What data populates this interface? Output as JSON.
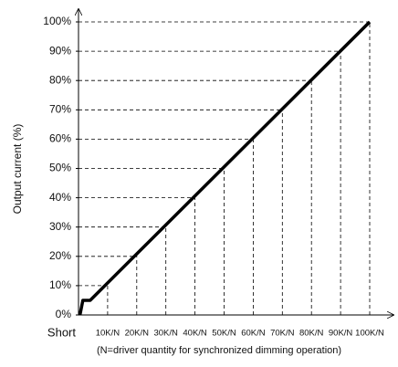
{
  "chart_data": {
    "type": "line",
    "ylabel": "Output current (%)",
    "xlabel": "(N=driver quantity for synchronized dimming operation)",
    "x": [
      0.5,
      1.5,
      4,
      100
    ],
    "series": [
      {
        "color": "#000000",
        "values": [
          0,
          5,
          5,
          100
        ]
      }
    ],
    "xlim": [
      0,
      100
    ],
    "xticks": [
      {
        "value": 0,
        "label": "Short"
      },
      {
        "value": 10,
        "label": "10K/N"
      },
      {
        "value": 20,
        "label": "20K/N"
      },
      {
        "value": 30,
        "label": "30K/N"
      },
      {
        "value": 40,
        "label": "40K/N"
      },
      {
        "value": 50,
        "label": "50K/N"
      },
      {
        "value": 60,
        "label": "60K/N"
      },
      {
        "value": 70,
        "label": "70K/N"
      },
      {
        "value": 80,
        "label": "80K/N"
      },
      {
        "value": 90,
        "label": "90K/N"
      },
      {
        "value": 100,
        "label": "100K/N"
      }
    ],
    "ylim": [
      0,
      100
    ],
    "yticks": [
      {
        "value": 0,
        "label": "0%"
      },
      {
        "value": 10,
        "label": "10%"
      },
      {
        "value": 20,
        "label": "20%"
      },
      {
        "value": 30,
        "label": "30%"
      },
      {
        "value": 40,
        "label": "40%"
      },
      {
        "value": 50,
        "label": "50%"
      },
      {
        "value": 60,
        "label": "60%"
      },
      {
        "value": 70,
        "label": "70%"
      },
      {
        "value": 80,
        "label": "80%"
      },
      {
        "value": 90,
        "label": "90%"
      },
      {
        "value": 100,
        "label": "100%"
      }
    ],
    "grid": "dashed-to-line"
  }
}
